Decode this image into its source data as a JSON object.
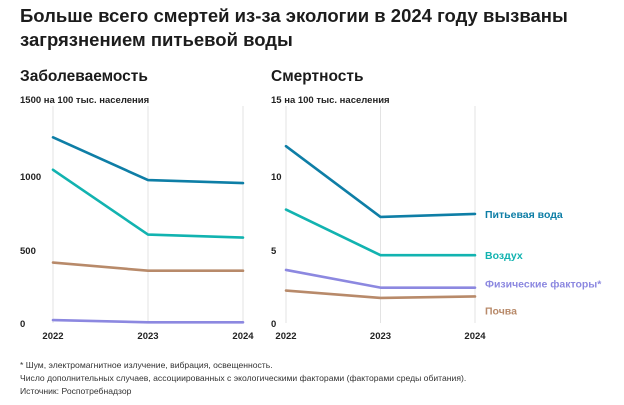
{
  "title": "Больше всего смертей из-за экологии в 2024 году вызваны загрязнением питьевой воды",
  "chart_data": [
    {
      "type": "line",
      "title": "Заболеваемость",
      "ylabel": "1500 на 100 тыс. населения",
      "categories": [
        "2022",
        "2023",
        "2024"
      ],
      "yticks": [
        "1000",
        "500",
        "0"
      ],
      "ylim": [
        0,
        1500
      ],
      "series": [
        {
          "name": "Питьевая вода",
          "color": "#0e7ea6",
          "values": [
            1260,
            970,
            950
          ]
        },
        {
          "name": "Воздух",
          "color": "#12b3b0",
          "values": [
            1040,
            600,
            580
          ]
        },
        {
          "name": "Почва",
          "color": "#b88a6a",
          "values": [
            410,
            355,
            355
          ]
        },
        {
          "name": "Физические факторы",
          "color": "#8c88e0",
          "values": [
            20,
            5,
            5
          ]
        }
      ]
    },
    {
      "type": "line",
      "title": "Смертность",
      "ylabel": "15 на 100 тыс. населения",
      "categories": [
        "2022",
        "2023",
        "2024"
      ],
      "yticks": [
        "10",
        "5",
        "0"
      ],
      "ylim": [
        0,
        15
      ],
      "series": [
        {
          "name": "Питьевая вода",
          "label": "Питьевая вода",
          "color": "#0e7ea6",
          "values": [
            12.0,
            7.2,
            7.4
          ]
        },
        {
          "name": "Воздух",
          "label": "Воздух",
          "color": "#12b3b0",
          "values": [
            7.7,
            4.6,
            4.6
          ]
        },
        {
          "name": "Физические факторы",
          "label": "Физические факторы*",
          "color": "#8c88e0",
          "values": [
            3.6,
            2.4,
            2.4
          ]
        },
        {
          "name": "Почва",
          "label": "Почва",
          "color": "#b88a6a",
          "values": [
            2.2,
            1.7,
            1.8
          ]
        }
      ]
    }
  ],
  "footnotes": [
    "* Шум, электромагнитное излучение, вибрация, освещенность.",
    "Число дополнительных случаев, ассоциированных с экологическими факторами (факторами среды обитания).",
    "Источник: Роспотребнадзор"
  ]
}
